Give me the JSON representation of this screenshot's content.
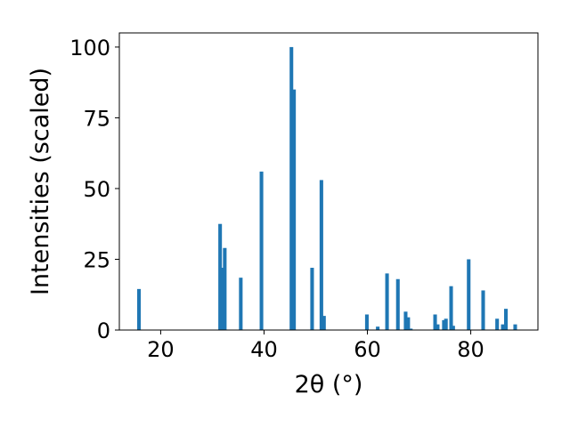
{
  "chart_data": {
    "type": "bar",
    "xlabel": "2θ (°)",
    "ylabel": "Intensities (scaled)",
    "xlim": [
      12,
      93
    ],
    "ylim": [
      0,
      105
    ],
    "x_ticks": [
      20,
      40,
      60,
      80
    ],
    "y_ticks": [
      0,
      25,
      50,
      75,
      100
    ],
    "bar_width": 0.7,
    "color": "#1f77b4",
    "grid": false,
    "series": [
      {
        "x": [
          15.8,
          31.5,
          32.0,
          32.4,
          35.5,
          39.5,
          45.3,
          45.8,
          49.3,
          51.1,
          51.6,
          59.9,
          62.0,
          63.8,
          65.9,
          67.4,
          67.9,
          68.4,
          73.1,
          73.6,
          74.8,
          75.2,
          76.2,
          76.6,
          79.6,
          82.4,
          85.1,
          86.2,
          86.8,
          88.6
        ],
        "values": [
          14.5,
          37.5,
          22.0,
          29.0,
          18.5,
          56.0,
          100.0,
          85.0,
          22.0,
          53.0,
          5.0,
          5.5,
          1.2,
          20.0,
          18.0,
          6.5,
          4.5,
          0.5,
          5.5,
          2.0,
          3.5,
          4.0,
          15.5,
          1.5,
          25.0,
          14.0,
          4.0,
          2.0,
          7.5,
          2.0
        ]
      }
    ]
  }
}
